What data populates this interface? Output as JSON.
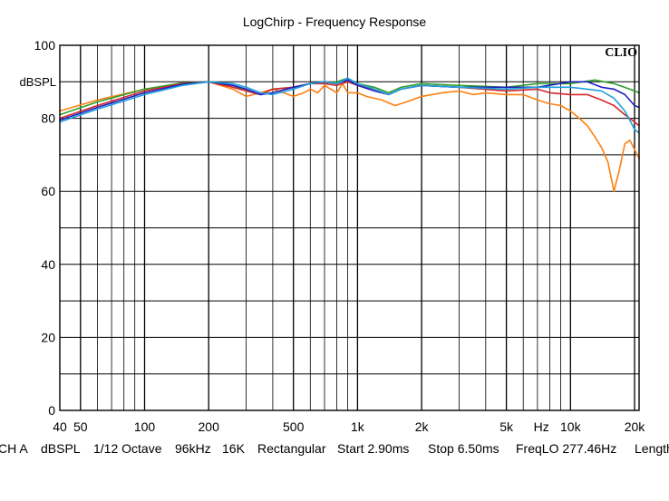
{
  "chart_data": {
    "type": "line",
    "title": "LogChirp - Frequency Response",
    "brand": "CLIO",
    "ylabel": "dBSPL",
    "xlabel": "Hz",
    "xscale": "log",
    "xlim": [
      40,
      21000
    ],
    "ylim": [
      0,
      100
    ],
    "grid": true,
    "x_ticks": [
      {
        "value": 40,
        "label": "40"
      },
      {
        "value": 50,
        "label": "50"
      },
      {
        "value": 100,
        "label": "100"
      },
      {
        "value": 200,
        "label": "200"
      },
      {
        "value": 500,
        "label": "500"
      },
      {
        "value": 1000,
        "label": "1k"
      },
      {
        "value": 2000,
        "label": "2k"
      },
      {
        "value": 5000,
        "label": "5k"
      },
      {
        "value": 10000,
        "label": "10k"
      },
      {
        "value": 20000,
        "label": "20k"
      }
    ],
    "y_ticks": [
      {
        "value": 0,
        "label": "0"
      },
      {
        "value": 20,
        "label": "20"
      },
      {
        "value": 40,
        "label": "40"
      },
      {
        "value": 60,
        "label": "60"
      },
      {
        "value": 80,
        "label": "80"
      },
      {
        "value": 100,
        "label": "100"
      }
    ],
    "series": [
      {
        "color": "#ff7f0e",
        "x": [
          40,
          60,
          100,
          150,
          200,
          260,
          300,
          350,
          400,
          450,
          500,
          560,
          600,
          650,
          700,
          800,
          850,
          900,
          1000,
          1100,
          1300,
          1500,
          1700,
          2000,
          2500,
          3000,
          3500,
          4000,
          5000,
          6000,
          7000,
          8000,
          9000,
          10000,
          11000,
          12000,
          13000,
          14000,
          15000,
          16000,
          17000,
          18000,
          19000,
          21000
        ],
        "y": [
          82,
          85,
          88,
          89.5,
          90,
          88,
          86,
          87,
          88,
          87,
          86,
          87,
          88,
          87,
          89,
          87,
          89.5,
          87,
          87,
          86,
          85,
          83.5,
          84.5,
          86,
          87,
          87.5,
          86.5,
          87,
          86.5,
          86.5,
          85,
          84,
          83.5,
          82,
          80,
          78,
          75,
          72,
          68,
          60,
          66,
          73,
          74,
          69
        ]
      },
      {
        "color": "#2ca02c",
        "x": [
          40,
          60,
          100,
          150,
          200,
          260,
          300,
          350,
          400,
          500,
          600,
          700,
          800,
          900,
          1000,
          1200,
          1400,
          1600,
          2000,
          3000,
          5000,
          7000,
          10000,
          13000,
          16000,
          19000,
          21000
        ],
        "y": [
          81,
          84.5,
          88,
          89.7,
          90,
          89,
          87.5,
          86.5,
          88,
          88.5,
          89.5,
          89.7,
          90,
          91,
          89.5,
          88.5,
          87,
          88.5,
          89.5,
          89,
          88.5,
          89.5,
          89.5,
          90.5,
          89.5,
          88,
          87
        ]
      },
      {
        "color": "#d62728",
        "x": [
          40,
          60,
          100,
          150,
          200,
          260,
          300,
          350,
          400,
          500,
          600,
          700,
          800,
          900,
          1000,
          1200,
          1400,
          1600,
          2000,
          3000,
          5000,
          7000,
          8000,
          10000,
          12000,
          14000,
          16000,
          18000,
          20000,
          21000
        ],
        "y": [
          80,
          83.5,
          87.5,
          89.5,
          90,
          88.5,
          87.5,
          86.5,
          88,
          88.5,
          89.5,
          89.5,
          89,
          90,
          89,
          88,
          86.5,
          88,
          89,
          88.5,
          87.5,
          88,
          87,
          86.5,
          86.5,
          85,
          83.5,
          81,
          79,
          78
        ]
      },
      {
        "color": "#1f1fbf",
        "x": [
          40,
          60,
          100,
          150,
          200,
          260,
          300,
          350,
          400,
          500,
          600,
          700,
          800,
          900,
          1000,
          1200,
          1400,
          1600,
          2000,
          3000,
          5000,
          7000,
          10000,
          12000,
          14000,
          16000,
          18000,
          20000,
          21000
        ],
        "y": [
          79.5,
          83,
          87,
          89.3,
          90,
          89,
          88,
          86.5,
          87,
          88.5,
          89.5,
          90,
          89.5,
          90.5,
          89,
          87.5,
          86.5,
          88,
          89,
          88.5,
          88.5,
          88.5,
          90,
          90,
          88.5,
          88,
          86.5,
          83.5,
          83
        ]
      },
      {
        "color": "#1f9fdf",
        "x": [
          40,
          60,
          100,
          150,
          200,
          260,
          300,
          350,
          400,
          500,
          600,
          700,
          800,
          900,
          1000,
          1200,
          1400,
          1600,
          2000,
          3000,
          5000,
          7000,
          10000,
          12000,
          14000,
          16000,
          18000,
          20000,
          21000
        ],
        "y": [
          79,
          82.5,
          86.5,
          89,
          90,
          89.5,
          88.5,
          87,
          86.5,
          88,
          89.5,
          90,
          89.5,
          91,
          89.5,
          88,
          86.5,
          88,
          89,
          88.5,
          88,
          88.5,
          88.5,
          88,
          87.5,
          85.5,
          82,
          77,
          76
        ]
      }
    ]
  },
  "status_bar": [
    "CH A",
    "dBSPL",
    "1/12 Octave",
    "96kHz",
    "16K",
    "Rectangular",
    "Start 2.90ms",
    "Stop 6.50ms",
    "FreqLO 277.46Hz",
    "Length"
  ]
}
